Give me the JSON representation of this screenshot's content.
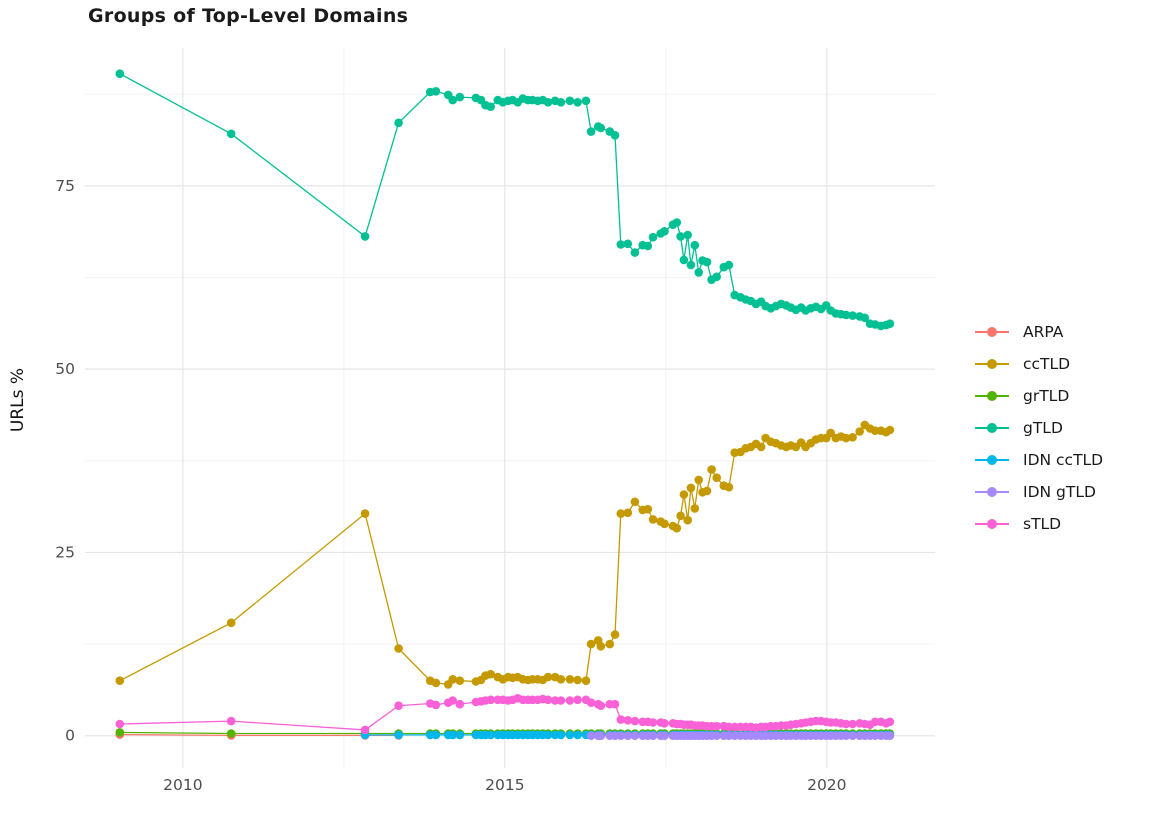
{
  "chart_data": {
    "type": "scatter",
    "title": "Groups of Top-Level Domains",
    "xlabel": "",
    "ylabel": "URLs %",
    "legend_position": "right",
    "grid": true,
    "xlim": [
      2008.48,
      2021.68
    ],
    "ylim": [
      -4.4,
      93.8
    ],
    "x_major_ticks": [
      2010,
      2015,
      2020
    ],
    "x_tick_labels": [
      "2010",
      "2015",
      "2020"
    ],
    "x_minor_ticks": [
      2012.5,
      2017.5
    ],
    "y_major_ticks": [
      0,
      25,
      50,
      75
    ],
    "y_tick_labels": [
      "0",
      "25",
      "50",
      "75"
    ],
    "y_minor_ticks": [
      12.5,
      37.5,
      62.5,
      87.5
    ],
    "colors": {
      "major_grid": "#e6e6e6",
      "minor_grid": "#f2f2f2",
      "axis_text": "#4e4e4e",
      "title_text": "#1b1b1b"
    },
    "dense_x": [
      2013.84,
      2013.93,
      2014.12,
      2014.19,
      2014.3,
      2014.55,
      2014.63,
      2014.7,
      2014.78,
      2014.89,
      2014.97,
      2015.05,
      2015.12,
      2015.2,
      2015.28,
      2015.36,
      2015.43,
      2015.51,
      2015.59,
      2015.67,
      2015.78,
      2015.87,
      2016.01,
      2016.13,
      2016.26,
      2016.34,
      2016.45,
      2016.49,
      2016.63,
      2016.71,
      2016.8,
      2016.91,
      2017.02,
      2017.14,
      2017.22,
      2017.3,
      2017.42,
      2017.48,
      2017.61,
      2017.67,
      2017.73,
      2017.78,
      2017.84,
      2017.89,
      2017.95,
      2018.01,
      2018.07,
      2018.14,
      2018.21,
      2018.29,
      2018.4,
      2018.48,
      2018.57,
      2018.66,
      2018.74,
      2018.82,
      2018.9,
      2018.98,
      2019.05,
      2019.13,
      2019.21,
      2019.29,
      2019.37,
      2019.44,
      2019.52,
      2019.6,
      2019.67,
      2019.75,
      2019.83,
      2019.91,
      2019.99,
      2020.06,
      2020.14,
      2020.22,
      2020.3,
      2020.4,
      2020.51,
      2020.59,
      2020.67,
      2020.75,
      2020.84,
      2020.92,
      2020.98
    ],
    "series": [
      {
        "name": "ARPA",
        "color": "#F8766D",
        "points": [
          [
            2009.02,
            0.15
          ],
          [
            2010.75,
            0.05
          ],
          [
            2012.83,
            0.05
          ],
          [
            2013.35,
            0.05
          ]
        ]
      },
      {
        "name": "ccTLD",
        "color": "#C49A00",
        "points": [
          [
            2009.02,
            7.5
          ],
          [
            2010.75,
            15.4
          ],
          [
            2012.83,
            30.3
          ],
          [
            2013.35,
            11.9
          ]
        ],
        "dense": [
          7.5,
          7.2,
          7.0,
          7.7,
          7.5,
          7.4,
          7.6,
          8.2,
          8.4,
          8.0,
          7.7,
          8.0,
          7.9,
          8.0,
          7.7,
          7.6,
          7.7,
          7.7,
          7.6,
          8.0,
          8.0,
          7.7,
          7.7,
          7.6,
          7.5,
          12.5,
          13.0,
          12.2,
          12.5,
          13.8,
          30.3,
          30.4,
          31.9,
          30.8,
          30.9,
          29.5,
          29.2,
          28.9,
          28.6,
          28.3,
          30.0,
          32.9,
          29.4,
          33.8,
          31.0,
          34.9,
          33.2,
          33.4,
          36.3,
          35.2,
          34.1,
          33.9,
          38.6,
          38.7,
          39.2,
          39.4,
          39.8,
          39.4,
          40.6,
          40.1,
          39.9,
          39.6,
          39.4,
          39.6,
          39.4,
          40.0,
          39.4,
          39.9,
          40.4,
          40.6,
          40.6,
          41.3,
          40.6,
          40.8,
          40.6,
          40.7,
          41.5,
          42.4,
          41.9,
          41.6,
          41.6,
          41.4,
          41.7
        ]
      },
      {
        "name": "grTLD",
        "color": "#53B400",
        "points": [
          [
            2009.02,
            0.45
          ],
          [
            2010.75,
            0.3
          ],
          [
            2012.83,
            0.3
          ],
          [
            2013.35,
            0.3
          ]
        ],
        "dense_flat": {
          "value": 0.3,
          "from_index": 0
        }
      },
      {
        "name": "gTLD",
        "color": "#00C094",
        "points": [
          [
            2009.02,
            90.3
          ],
          [
            2010.75,
            82.1
          ],
          [
            2012.83,
            68.1
          ],
          [
            2013.35,
            83.6
          ]
        ],
        "dense": [
          87.8,
          87.9,
          87.4,
          86.7,
          87.1,
          87.0,
          86.7,
          86.0,
          85.8,
          86.7,
          86.4,
          86.6,
          86.7,
          86.4,
          86.9,
          86.7,
          86.7,
          86.6,
          86.7,
          86.4,
          86.6,
          86.4,
          86.6,
          86.4,
          86.6,
          82.4,
          83.1,
          82.9,
          82.4,
          81.9,
          67.0,
          67.1,
          65.9,
          66.9,
          66.8,
          68.0,
          68.5,
          68.8,
          69.7,
          70.0,
          68.1,
          64.9,
          68.3,
          64.2,
          66.9,
          63.2,
          64.8,
          64.6,
          62.2,
          62.6,
          63.9,
          64.2,
          60.1,
          59.8,
          59.5,
          59.3,
          58.9,
          59.2,
          58.6,
          58.3,
          58.6,
          58.9,
          58.7,
          58.4,
          58.1,
          58.4,
          58.0,
          58.3,
          58.5,
          58.2,
          58.7,
          58.0,
          57.6,
          57.5,
          57.4,
          57.3,
          57.2,
          57.0,
          56.2,
          56.1,
          55.9,
          56.0,
          56.2
        ]
      },
      {
        "name": "IDN ccTLD",
        "color": "#00B6EB",
        "points": [
          [
            2012.83,
            0.12
          ],
          [
            2013.35,
            0.12
          ]
        ],
        "dense_flat": {
          "value": 0.12,
          "from_index": 0
        }
      },
      {
        "name": "IDN gTLD",
        "color": "#A58AFF",
        "points": [],
        "dense_flat": {
          "value": 0.0,
          "from_index": 25
        }
      },
      {
        "name": "sTLD",
        "color": "#FB61D7",
        "points": [
          [
            2009.02,
            1.6
          ],
          [
            2010.75,
            2.0
          ],
          [
            2012.83,
            0.8
          ],
          [
            2013.35,
            4.1
          ]
        ],
        "dense": [
          4.4,
          4.2,
          4.5,
          4.8,
          4.3,
          4.6,
          4.7,
          4.8,
          4.9,
          4.9,
          4.9,
          4.8,
          4.9,
          5.1,
          4.9,
          4.9,
          4.9,
          4.9,
          5.0,
          4.9,
          4.8,
          4.8,
          4.8,
          4.9,
          4.9,
          4.5,
          4.3,
          4.1,
          4.3,
          4.3,
          2.2,
          2.1,
          2.0,
          1.9,
          1.9,
          1.8,
          1.8,
          1.7,
          1.7,
          1.6,
          1.6,
          1.5,
          1.5,
          1.5,
          1.4,
          1.4,
          1.4,
          1.3,
          1.3,
          1.3,
          1.3,
          1.2,
          1.2,
          1.2,
          1.2,
          1.2,
          1.1,
          1.2,
          1.2,
          1.3,
          1.3,
          1.4,
          1.4,
          1.5,
          1.6,
          1.7,
          1.8,
          1.9,
          2.0,
          2.0,
          1.9,
          1.8,
          1.8,
          1.7,
          1.6,
          1.6,
          1.7,
          1.6,
          1.5,
          1.9,
          1.9,
          1.7,
          1.9
        ]
      }
    ]
  }
}
